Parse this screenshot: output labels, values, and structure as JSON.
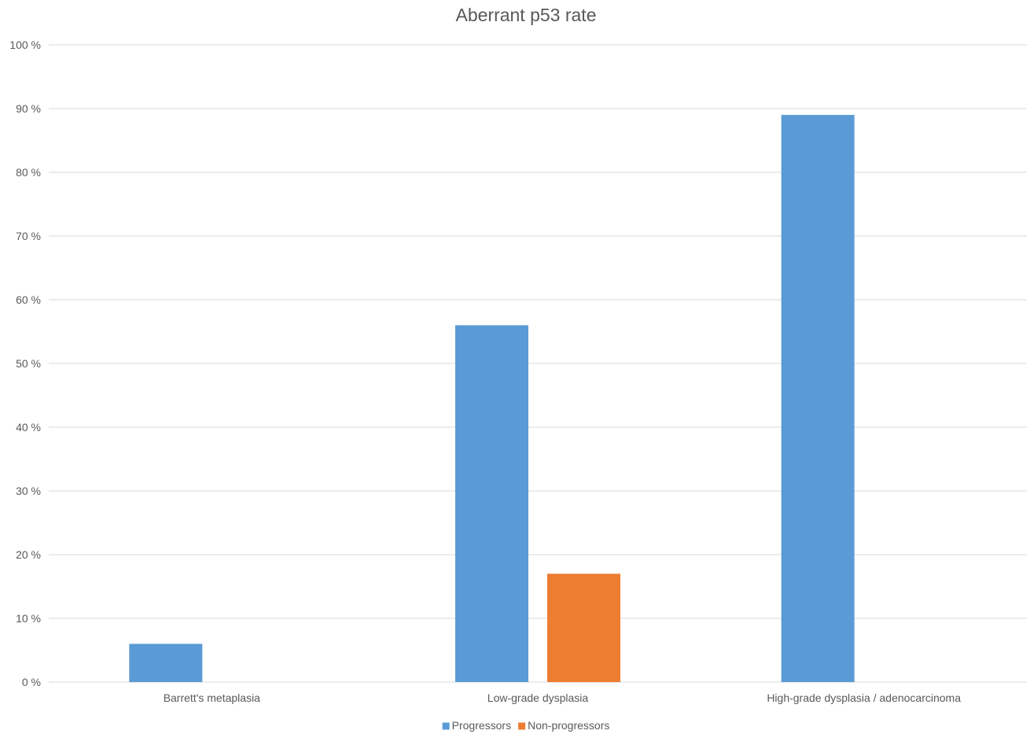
{
  "chart_data": {
    "type": "bar",
    "title": "Aberrant p53 rate",
    "xlabel": "",
    "ylabel": "",
    "ylim": [
      0,
      100
    ],
    "yticks": [
      0,
      10,
      20,
      30,
      40,
      50,
      60,
      70,
      80,
      90,
      100
    ],
    "ytick_suffix": " %",
    "grid": true,
    "legend_position": "bottom",
    "categories": [
      "Barrett's metaplasia",
      "Low-grade dysplasia",
      "High-grade dysplasia / adenocarcinoma"
    ],
    "series": [
      {
        "name": "Progressors",
        "color": "#5B9BD5",
        "values": [
          6,
          56,
          89
        ]
      },
      {
        "name": "Non-progressors",
        "color": "#ED7D31",
        "values": [
          null,
          17,
          null
        ]
      }
    ]
  }
}
